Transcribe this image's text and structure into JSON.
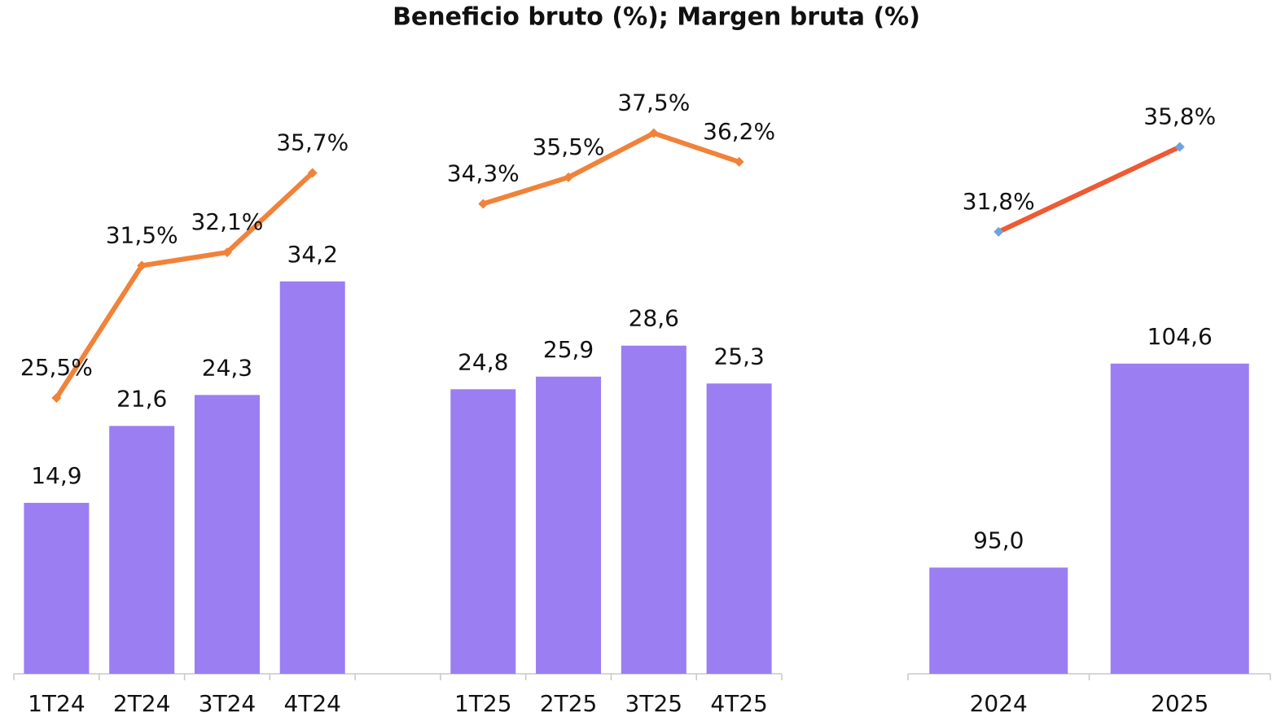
{
  "chart_data": [
    {
      "type": "bar",
      "title": "Beneficio bruto (%); Margen bruta (%)",
      "categories": [
        "1T24",
        "2T24",
        "3T24",
        "4T24",
        null,
        "1T25",
        "2T25",
        "3T25",
        "4T25"
      ],
      "ylim": [
        0,
        50
      ],
      "y2lim": [
        13,
        39
      ],
      "series": [
        {
          "type": "bar",
          "color": "#9b7ef2",
          "values": [
            14.9,
            21.6,
            24.3,
            34.2,
            null,
            24.8,
            25.9,
            28.6,
            25.3
          ],
          "value_labels": [
            "14,9",
            "21,6",
            "24,3",
            "34,2",
            null,
            "24,8",
            "25,9",
            "28,6",
            "25,3"
          ]
        },
        {
          "type": "line",
          "axis": "y2",
          "color": "#f0823a",
          "marker_color": "#f0823a",
          "values": [
            25.5,
            31.5,
            32.1,
            35.7,
            null,
            34.3,
            35.5,
            37.5,
            36.2
          ],
          "value_labels": [
            "25,5%",
            "31,5%",
            "32,1%",
            "35,7%",
            null,
            "34,3%",
            "35,5%",
            "37,5%",
            "36,2%"
          ]
        }
      ]
    },
    {
      "type": "bar",
      "categories": [
        "2024",
        "2025"
      ],
      "ylim": [
        90,
        117
      ],
      "y2lim": [
        11,
        38
      ],
      "series": [
        {
          "type": "bar",
          "color": "#9b7ef2",
          "values": [
            95.0,
            104.6
          ],
          "value_labels": [
            "95,0",
            "104,6"
          ]
        },
        {
          "type": "line",
          "axis": "y2",
          "color": "#ee5a33",
          "marker_color": "#6fa3e0",
          "values": [
            31.8,
            35.8
          ],
          "value_labels": [
            "31,8%",
            "35,8%"
          ]
        }
      ]
    }
  ]
}
